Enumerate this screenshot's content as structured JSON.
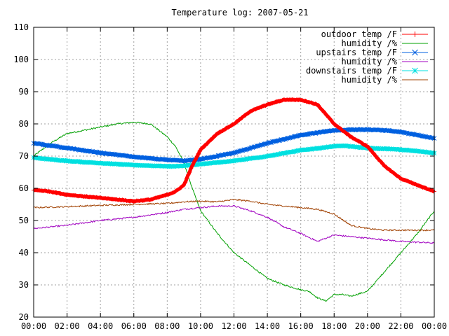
{
  "chart_data": {
    "type": "line",
    "title": "Temperature log: 2007-05-21",
    "xlabel": "",
    "ylabel": "",
    "x_ticks": [
      "00:00",
      "02:00",
      "04:00",
      "06:00",
      "08:00",
      "10:00",
      "12:00",
      "14:00",
      "16:00",
      "18:00",
      "20:00",
      "22:00",
      "00:00"
    ],
    "xlim": [
      0,
      24
    ],
    "y_ticks": [
      20,
      30,
      40,
      50,
      60,
      70,
      80,
      90,
      100,
      110
    ],
    "ylim": [
      20,
      110
    ],
    "grid": true,
    "legend_position": "top-right",
    "series": [
      {
        "name": "outdoor temp /F",
        "color": "#ff0000",
        "marker": "plus",
        "x": [
          0,
          1,
          2,
          3,
          4,
          5,
          6,
          7,
          8,
          8.5,
          9,
          9.5,
          10,
          11,
          12,
          13,
          14,
          15,
          16,
          17,
          17.5,
          18,
          18.5,
          19,
          20,
          21,
          22,
          23,
          24
        ],
        "y": [
          59.5,
          59,
          58,
          57.5,
          57,
          56.5,
          56,
          56.5,
          58,
          59,
          61,
          67,
          72,
          77,
          80,
          84,
          86,
          87.5,
          87.5,
          86,
          83,
          80,
          78,
          76,
          73,
          67,
          63,
          61,
          59
        ]
      },
      {
        "name": "humidity /%",
        "color": "#00a000",
        "marker": "none",
        "x": [
          0,
          1,
          2,
          3,
          4,
          5,
          6,
          7,
          8,
          8.5,
          9,
          9.5,
          10,
          11,
          12,
          13,
          14,
          15,
          16,
          16.5,
          17,
          17.5,
          18,
          18.5,
          19,
          20,
          21,
          22,
          23,
          24
        ],
        "y": [
          70,
          74,
          77,
          78,
          79,
          80,
          80.5,
          80,
          76,
          73,
          68,
          60,
          53,
          46,
          40,
          36,
          32,
          30,
          28.5,
          28,
          26,
          25,
          27,
          27,
          26.5,
          28,
          34,
          40,
          46,
          53
        ]
      },
      {
        "name": "upstairs temp /F",
        "color": "#0060e0",
        "marker": "x",
        "x": [
          0,
          2,
          4,
          6,
          8,
          9,
          10,
          12,
          14,
          16,
          18,
          19,
          20,
          21,
          22,
          24
        ],
        "y": [
          74,
          72.5,
          71,
          69.8,
          68.8,
          68.5,
          69,
          71,
          74,
          76.5,
          78,
          78.2,
          78.2,
          78,
          77.5,
          75.5
        ]
      },
      {
        "name": "humidity /%",
        "color": "#a000c0",
        "marker": "none",
        "x": [
          0,
          2,
          4,
          6,
          8,
          9,
          10,
          11,
          12,
          13,
          14,
          15,
          16,
          17,
          18,
          19,
          20,
          22,
          24
        ],
        "y": [
          47.5,
          48.5,
          50,
          51,
          52.5,
          53.5,
          54,
          54.5,
          54.5,
          53,
          51,
          48,
          46,
          43.5,
          45.5,
          45,
          44.5,
          43.5,
          43
        ]
      },
      {
        "name": "downstairs temp /F",
        "color": "#00e0e0",
        "marker": "star",
        "x": [
          0,
          2,
          4,
          6,
          8,
          9,
          10,
          12,
          14,
          16,
          18,
          18.5,
          19,
          20,
          22,
          24
        ],
        "y": [
          69.5,
          68.5,
          67.8,
          67.2,
          66.8,
          67,
          67.5,
          68.5,
          70,
          71.8,
          73,
          73.2,
          73,
          72.5,
          72,
          71
        ]
      },
      {
        "name": "humidity /%",
        "color": "#a04000",
        "marker": "none",
        "x": [
          0,
          2,
          4,
          6,
          8,
          9,
          10,
          11,
          12,
          13,
          14,
          15,
          16,
          17,
          18,
          19,
          20,
          21,
          22,
          23,
          24
        ],
        "y": [
          54,
          54.3,
          54.7,
          55,
          55.3,
          55.8,
          56,
          55.8,
          56.5,
          56,
          55,
          54.5,
          54,
          53.5,
          52,
          48.5,
          47.5,
          47,
          47,
          47,
          47
        ]
      }
    ]
  }
}
